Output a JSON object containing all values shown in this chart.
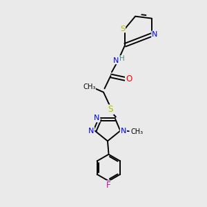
{
  "background_color": "#eaeaea",
  "bond_color": "#000000",
  "atom_colors": {
    "S": "#b8b800",
    "N": "#0000ff",
    "O": "#ff0000",
    "F": "#dd00aa",
    "H": "#4a9090",
    "C": "#000000"
  },
  "figsize": [
    3.0,
    3.0
  ],
  "dpi": 100
}
